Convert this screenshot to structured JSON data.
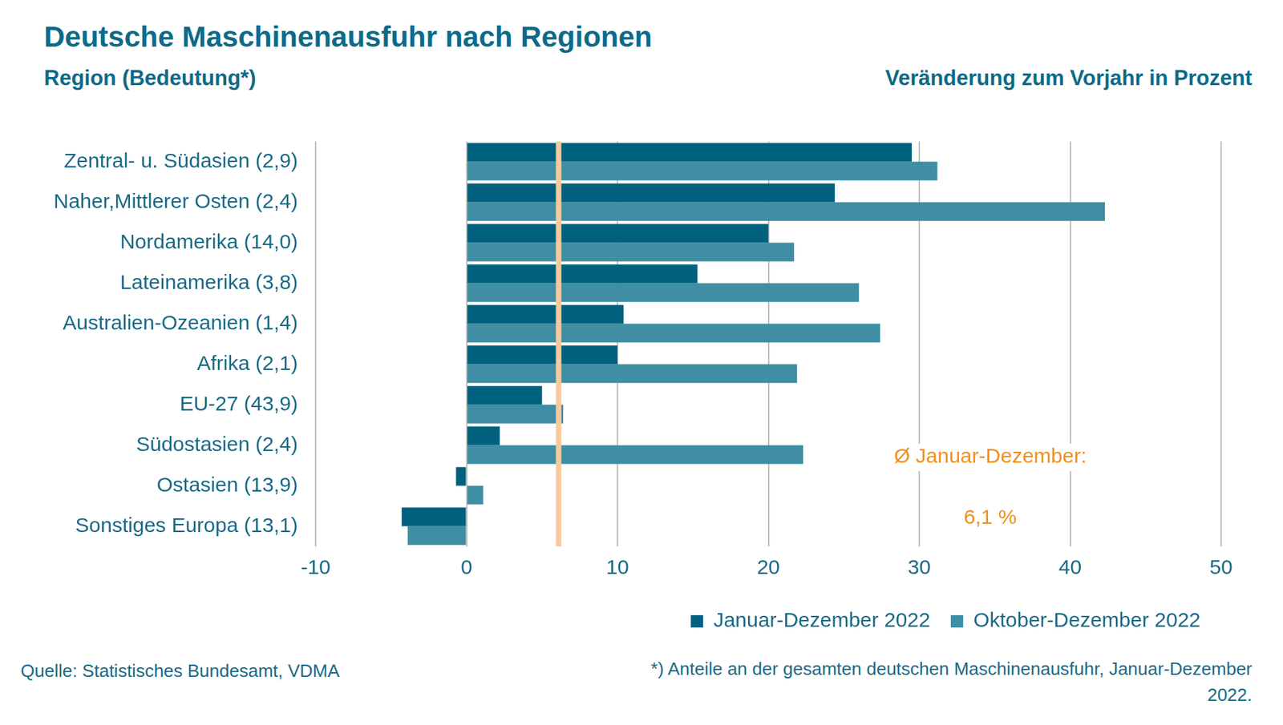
{
  "chart_data": {
    "type": "bar",
    "orientation": "horizontal",
    "title": "Deutsche Maschinenausfuhr nach Regionen",
    "y_label": "Region (Bedeutung*)",
    "x_label": "Veränderung zum Vorjahr in Prozent",
    "categories": [
      "Zentral- u. Südasien (2,9)",
      "Naher,Mittlerer Osten (2,4)",
      "Nordamerika (14,0)",
      "Lateinamerika (3,8)",
      "Australien-Ozeanien (1,4)",
      "Afrika (2,1)",
      "EU-27 (43,9)",
      "Südostasien (2,4)",
      "Ostasien (13,9)",
      "Sonstiges Europa (13,1)"
    ],
    "series": [
      {
        "name": "Januar-Dezember 2022",
        "color": "#00617f",
        "values": [
          29.5,
          24.4,
          20.0,
          15.3,
          10.4,
          10.0,
          5.0,
          2.2,
          -0.7,
          -4.3
        ]
      },
      {
        "name": "Oktober-Dezember 2022",
        "color": "#3f8ea3",
        "values": [
          31.2,
          42.3,
          21.7,
          26.0,
          27.4,
          21.9,
          6.4,
          22.3,
          1.1,
          -3.9
        ]
      }
    ],
    "reference_line": {
      "value": 6.1,
      "color": "#f9c99c",
      "label": "Ø Januar-Dezember:",
      "value_label": "6,1 %",
      "label_color": "#f0901e"
    },
    "xlim": [
      -10,
      50
    ],
    "xticks": [
      -10,
      0,
      10,
      20,
      30,
      40,
      50
    ],
    "grid": true,
    "legend": "bottom",
    "source": "Quelle: Statistisches Bundesamt, VDMA",
    "footnote": "*) Anteile an der gesamten deutschen Maschinenausfuhr, Januar-Dezember 2022."
  }
}
